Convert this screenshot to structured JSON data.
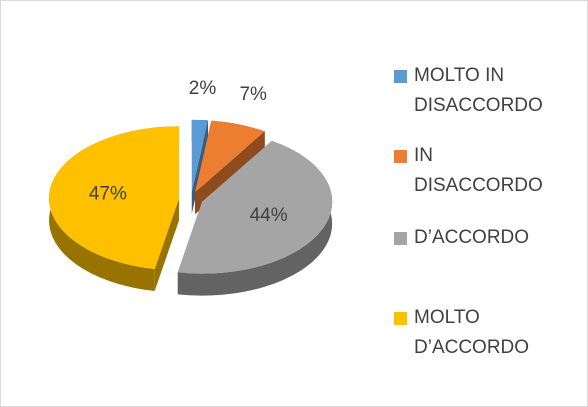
{
  "chart_data": {
    "type": "pie",
    "categories": [
      "MOLTO IN DISACCORDO",
      "IN DISACCORDO",
      "D’ACCORDO",
      "MOLTO D’ACCORDO"
    ],
    "values": [
      2,
      7,
      44,
      47
    ],
    "value_labels": [
      "2%",
      "7%",
      "44%",
      "47%"
    ],
    "colors": [
      "#5b9bd5",
      "#ed7d31",
      "#a5a5a5",
      "#ffc000"
    ],
    "legend": "right"
  }
}
